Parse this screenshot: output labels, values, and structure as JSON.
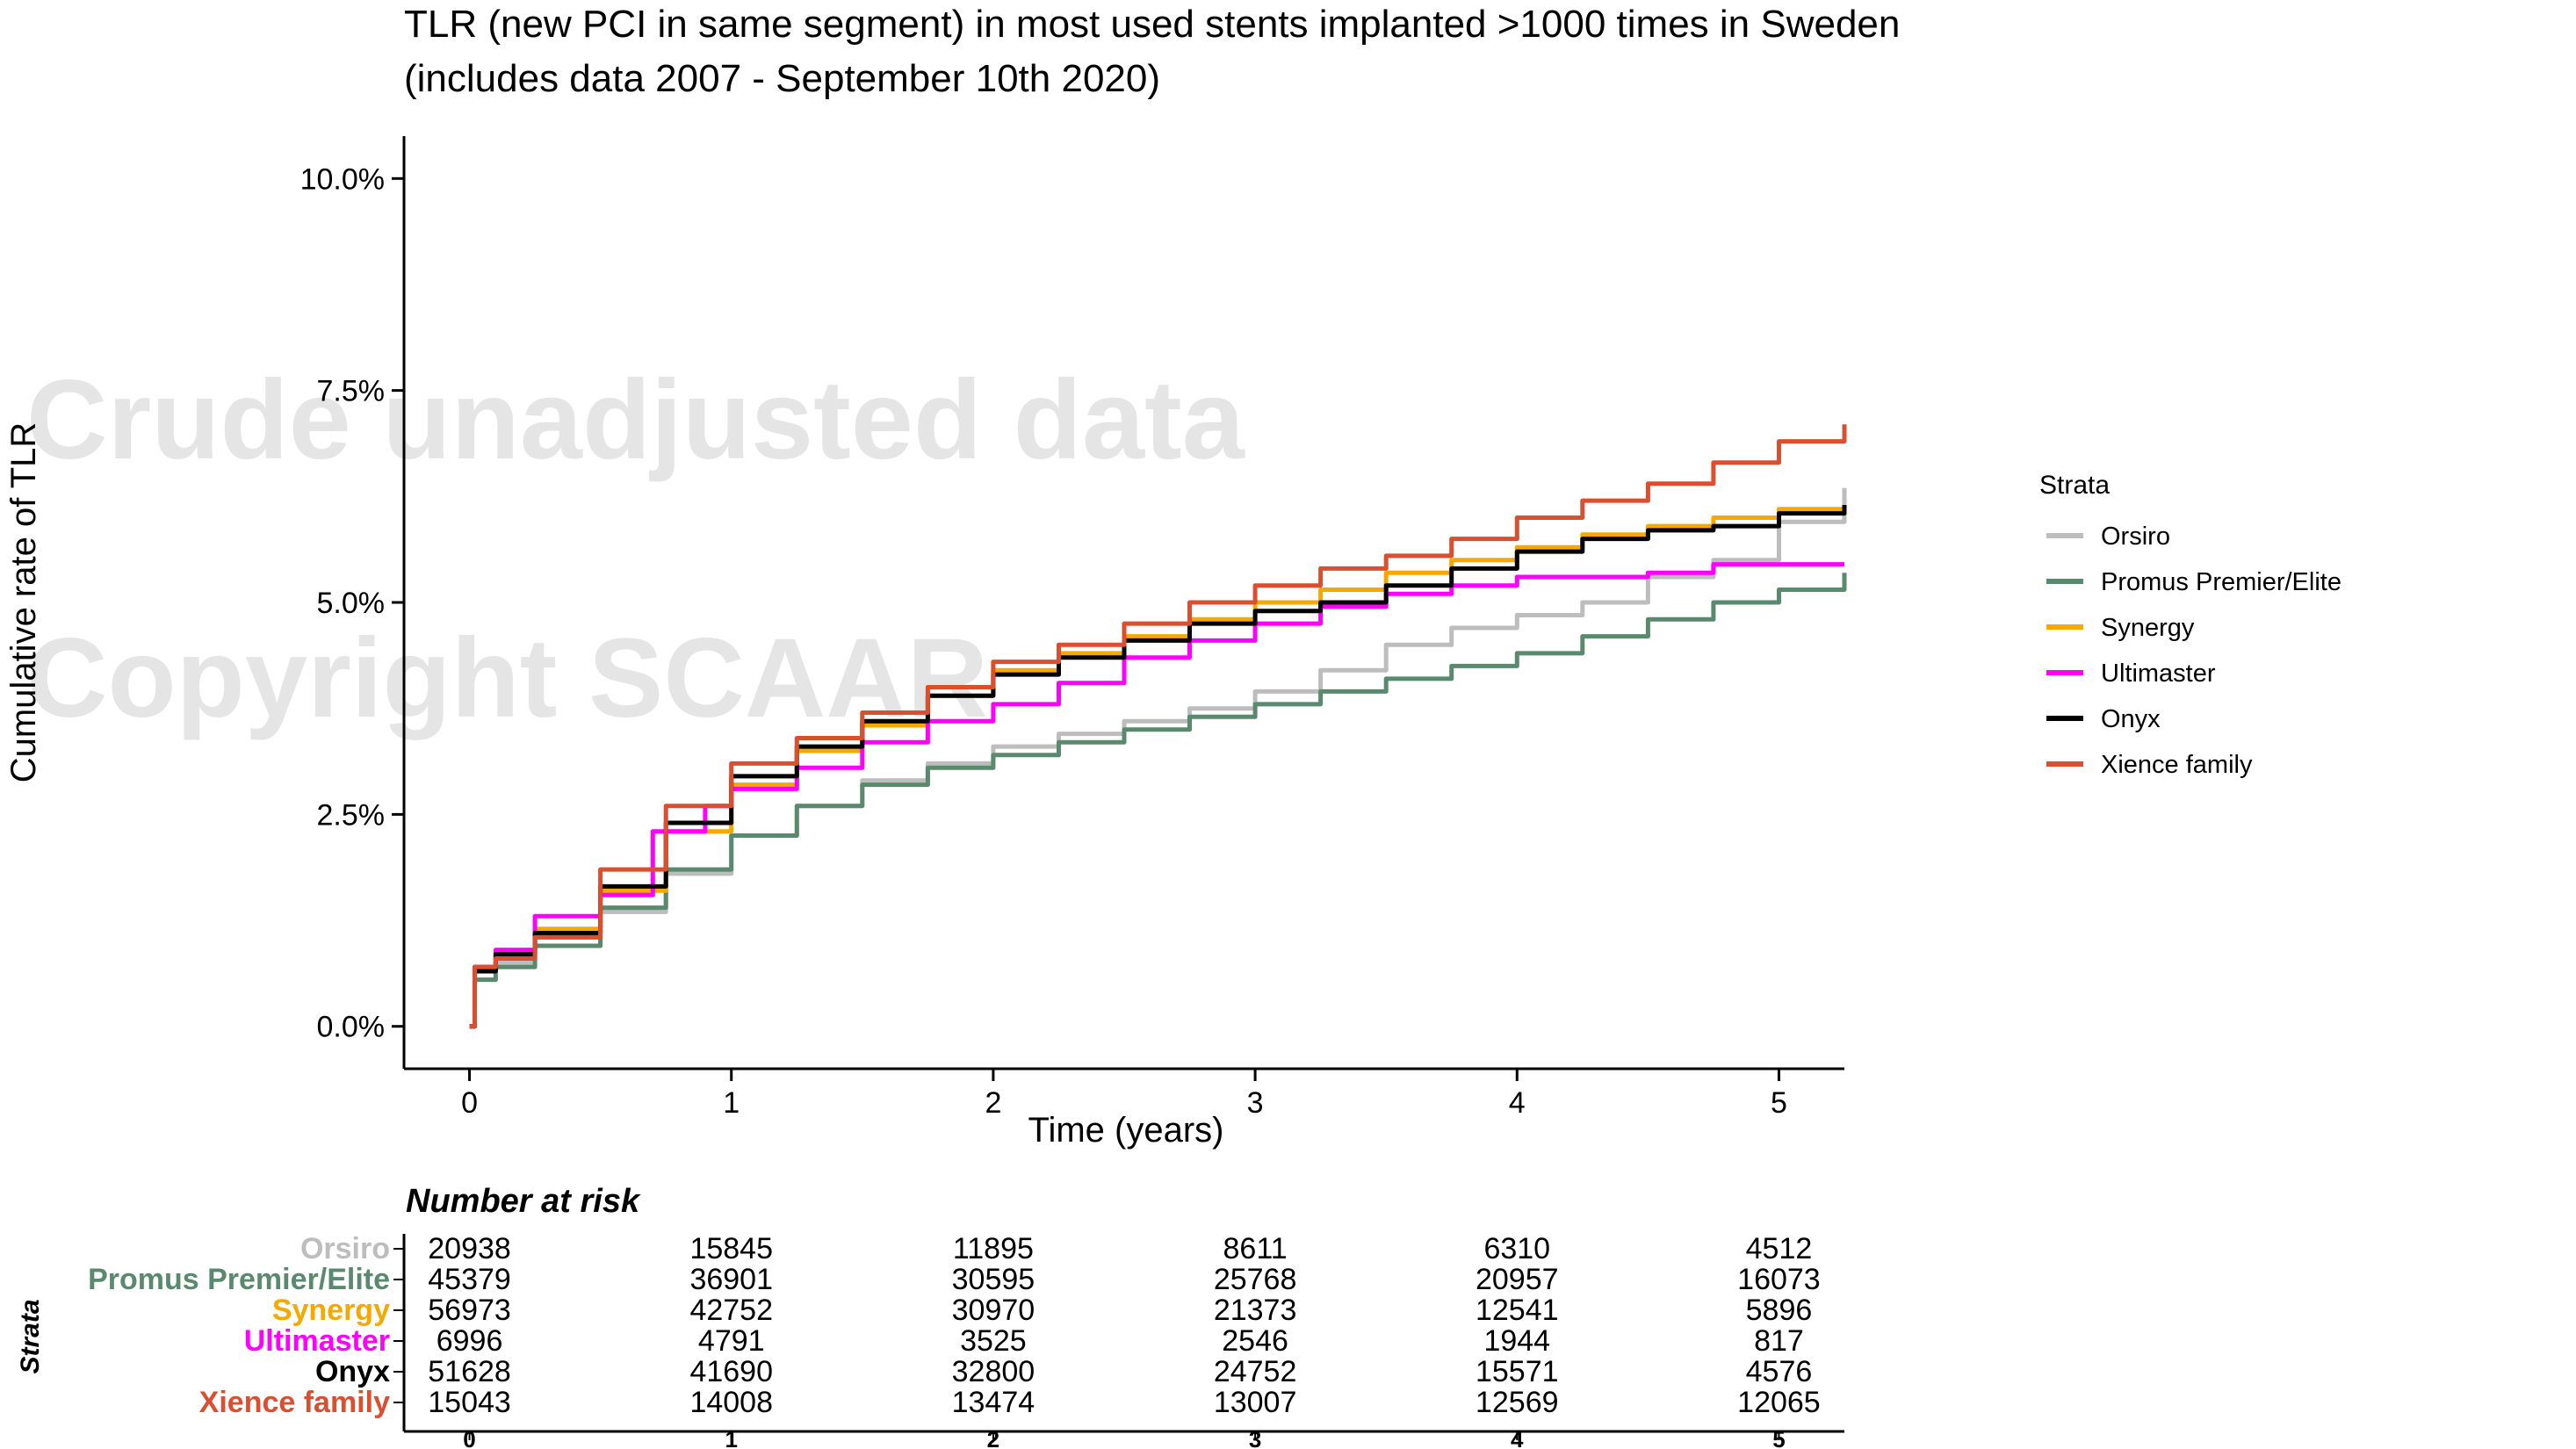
{
  "title_line1": "TLR (new PCI in same segment) in most used stents implanted >1000 times in Sweden",
  "title_line2": "(includes data 2007 - September 10th 2020)",
  "watermark_line1": "Crude unadjusted data",
  "watermark_line2": "Copyright SCAAR",
  "risk_table": {
    "title": "Number at risk",
    "side_label": "Strata",
    "rows": [
      {
        "name": "Orsiro",
        "values": [
          "20938",
          "15845",
          "11895",
          "8611",
          "6310",
          "4512"
        ]
      },
      {
        "name": "Promus Premier/Elite",
        "values": [
          "45379",
          "36901",
          "30595",
          "25768",
          "20957",
          "16073"
        ]
      },
      {
        "name": "Synergy",
        "values": [
          "56973",
          "42752",
          "30970",
          "21373",
          "12541",
          "5896"
        ]
      },
      {
        "name": "Ultimaster",
        "values": [
          "6996",
          "4791",
          "3525",
          "2546",
          "1944",
          "817"
        ]
      },
      {
        "name": "Onyx",
        "values": [
          "51628",
          "41690",
          "32800",
          "24752",
          "15571",
          "4576"
        ]
      },
      {
        "name": "Xience family",
        "values": [
          "15043",
          "14008",
          "13474",
          "13007",
          "12569",
          "12065"
        ]
      }
    ],
    "x_ticks": [
      "0",
      "1",
      "2",
      "3",
      "4",
      "5"
    ]
  },
  "chart_data": {
    "type": "line",
    "title": "TLR (new PCI in same segment) in most used stents implanted >1000 times in Sweden",
    "subtitle": "(includes data 2007 - September 10th 2020)",
    "xlabel": "Time (years)",
    "ylabel": "Cumulative rate of TLR",
    "xlim": [
      -0.25,
      5.25
    ],
    "ylim": [
      -0.5,
      10.5
    ],
    "x_ticks": [
      0,
      1,
      2,
      3,
      4,
      5
    ],
    "x_tick_labels": [
      "0",
      "1",
      "2",
      "3",
      "4",
      "5"
    ],
    "y_ticks": [
      0,
      2.5,
      5,
      7.5,
      10
    ],
    "y_tick_labels": [
      "0.0%",
      "2.5%",
      "5.0%",
      "7.5%",
      "10.0%"
    ],
    "grid": false,
    "legend": {
      "title": "Strata",
      "position": "right"
    },
    "series": [
      {
        "name": "Orsiro",
        "color": "#bdbdbd",
        "x": [
          0,
          0.02,
          0.1,
          0.25,
          0.5,
          0.75,
          1.0,
          1.25,
          1.5,
          1.75,
          2.0,
          2.25,
          2.5,
          2.75,
          3.0,
          3.25,
          3.5,
          3.75,
          4.0,
          4.25,
          4.5,
          4.75,
          5.0,
          5.25
        ],
        "y": [
          0,
          0.55,
          0.75,
          0.95,
          1.35,
          1.8,
          2.25,
          2.6,
          2.9,
          3.1,
          3.3,
          3.45,
          3.6,
          3.75,
          3.95,
          4.2,
          4.5,
          4.7,
          4.85,
          5.0,
          5.3,
          5.5,
          5.95,
          6.35
        ]
      },
      {
        "name": "Promus Premier/Elite",
        "color": "#5a8a6e",
        "x": [
          0,
          0.02,
          0.1,
          0.25,
          0.5,
          0.75,
          1.0,
          1.25,
          1.5,
          1.75,
          2.0,
          2.25,
          2.5,
          2.75,
          3.0,
          3.25,
          3.5,
          3.75,
          4.0,
          4.25,
          4.5,
          4.75,
          5.0,
          5.25
        ],
        "y": [
          0,
          0.55,
          0.7,
          0.95,
          1.4,
          1.85,
          2.25,
          2.6,
          2.85,
          3.05,
          3.2,
          3.35,
          3.5,
          3.65,
          3.8,
          3.95,
          4.1,
          4.25,
          4.4,
          4.6,
          4.8,
          5.0,
          5.15,
          5.35
        ]
      },
      {
        "name": "Synergy",
        "color": "#f5a800",
        "x": [
          0,
          0.02,
          0.1,
          0.25,
          0.5,
          0.75,
          1.0,
          1.25,
          1.5,
          1.75,
          2.0,
          2.25,
          2.5,
          2.75,
          3.0,
          3.25,
          3.5,
          3.75,
          4.0,
          4.25,
          4.5,
          4.75,
          5.0,
          5.25
        ],
        "y": [
          0,
          0.7,
          0.9,
          1.15,
          1.6,
          2.3,
          2.85,
          3.25,
          3.55,
          3.9,
          4.2,
          4.4,
          4.6,
          4.8,
          5.0,
          5.15,
          5.35,
          5.5,
          5.65,
          5.8,
          5.9,
          6.0,
          6.1,
          6.1
        ]
      },
      {
        "name": "Ultimaster",
        "color": "#ff00ff",
        "x": [
          0,
          0.02,
          0.1,
          0.25,
          0.5,
          0.7,
          0.9,
          1.0,
          1.25,
          1.5,
          1.75,
          2.0,
          2.25,
          2.5,
          2.75,
          3.0,
          3.25,
          3.5,
          3.75,
          4.0,
          4.25,
          4.5,
          4.75,
          5.0,
          5.25
        ],
        "y": [
          0,
          0.7,
          0.9,
          1.3,
          1.55,
          2.3,
          2.6,
          2.8,
          3.05,
          3.35,
          3.6,
          3.8,
          4.05,
          4.35,
          4.55,
          4.75,
          4.95,
          5.1,
          5.2,
          5.3,
          5.3,
          5.35,
          5.45,
          5.45,
          5.45
        ]
      },
      {
        "name": "Onyx",
        "color": "#000000",
        "x": [
          0,
          0.02,
          0.1,
          0.25,
          0.5,
          0.75,
          1.0,
          1.25,
          1.5,
          1.75,
          2.0,
          2.25,
          2.5,
          2.75,
          3.0,
          3.25,
          3.5,
          3.75,
          4.0,
          4.25,
          4.5,
          4.75,
          5.0,
          5.25
        ],
        "y": [
          0,
          0.65,
          0.85,
          1.1,
          1.65,
          2.4,
          2.95,
          3.3,
          3.6,
          3.9,
          4.15,
          4.35,
          4.55,
          4.75,
          4.9,
          5.0,
          5.2,
          5.4,
          5.6,
          5.75,
          5.85,
          5.9,
          6.05,
          6.15
        ]
      },
      {
        "name": "Xience family",
        "color": "#d94f30",
        "x": [
          0,
          0.02,
          0.1,
          0.25,
          0.5,
          0.75,
          1.0,
          1.25,
          1.5,
          1.75,
          2.0,
          2.25,
          2.5,
          2.75,
          3.0,
          3.25,
          3.5,
          3.75,
          4.0,
          4.25,
          4.5,
          4.75,
          5.0,
          5.25
        ],
        "y": [
          0,
          0.7,
          0.8,
          1.05,
          1.85,
          2.6,
          3.1,
          3.4,
          3.7,
          4.0,
          4.3,
          4.5,
          4.75,
          5.0,
          5.2,
          5.4,
          5.55,
          5.75,
          6.0,
          6.2,
          6.4,
          6.65,
          6.9,
          7.1
        ]
      }
    ]
  }
}
